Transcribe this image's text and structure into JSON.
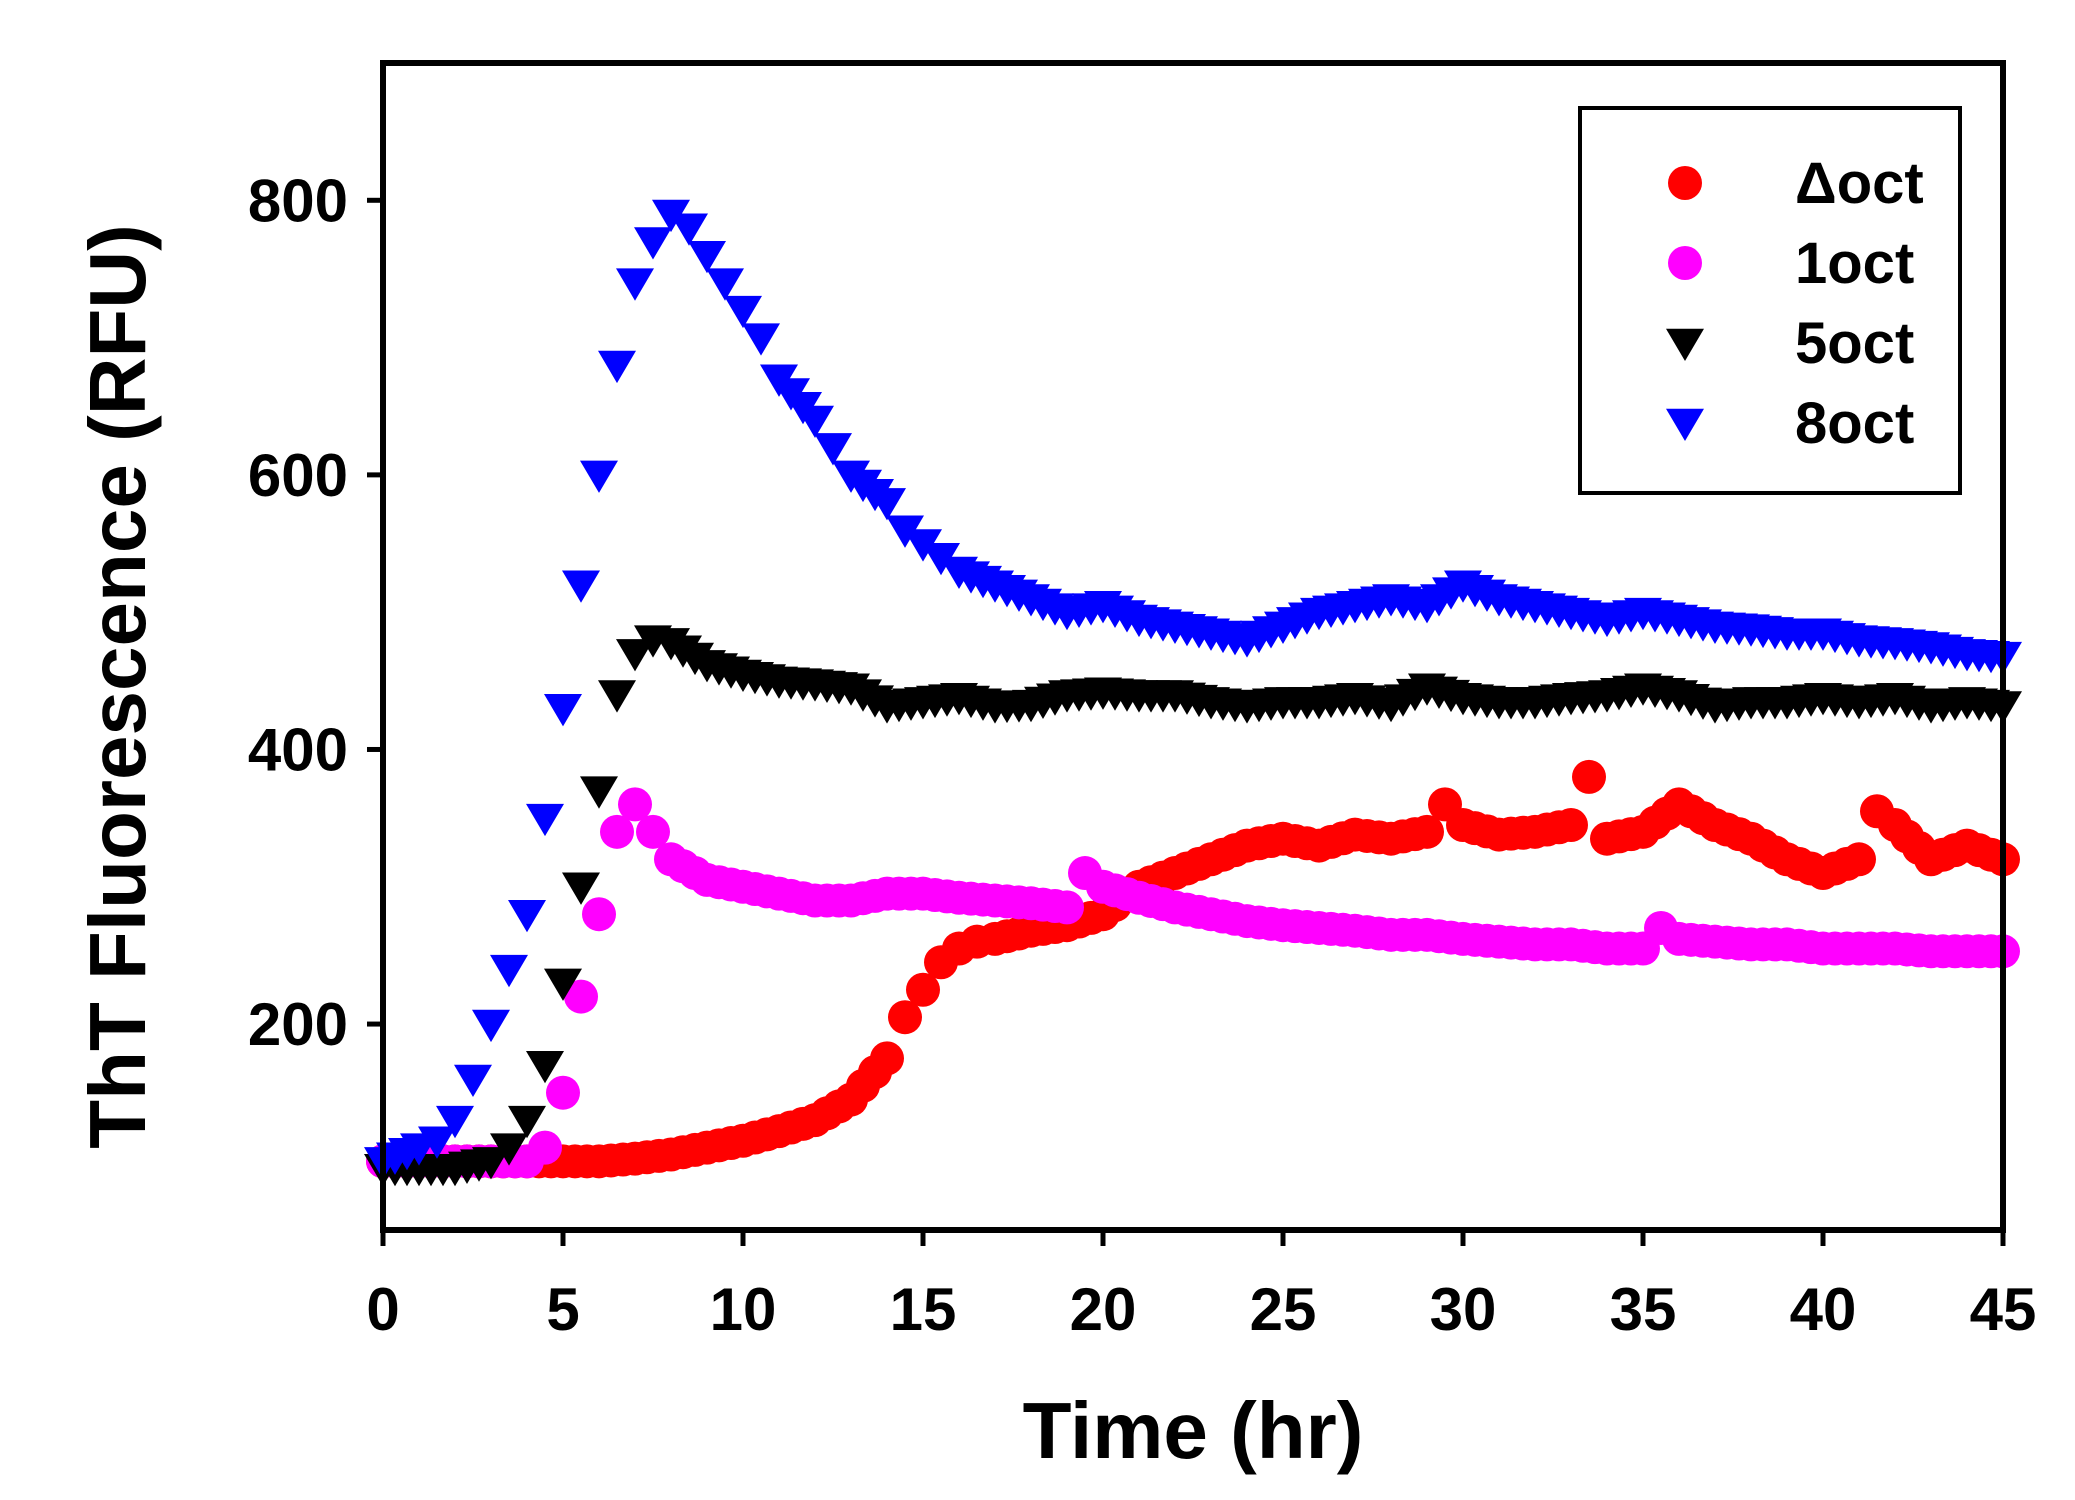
{
  "chart_data": {
    "type": "scatter",
    "title": "",
    "xlabel": "Time (hr)",
    "ylabel": "ThT Fluorescence (RFU)",
    "xlim": [
      0,
      45
    ],
    "ylim": [
      50,
      900
    ],
    "xticks": [
      0,
      5,
      10,
      15,
      20,
      25,
      30,
      35,
      40,
      45
    ],
    "yticks": [
      200,
      400,
      600,
      800
    ],
    "grid": false,
    "legend_position": "top-right",
    "series": [
      {
        "name": "Δoct",
        "color": "#ff0000",
        "marker": "circle",
        "x": [
          0,
          1,
          2,
          3,
          4,
          5,
          6,
          7,
          8,
          9,
          10,
          11,
          12,
          13,
          14,
          14.5,
          15,
          15.5,
          16,
          16.5,
          17,
          18,
          19,
          20,
          21,
          22,
          23,
          24,
          25,
          26,
          27,
          28,
          29,
          29.5,
          30,
          31,
          32,
          33,
          33.5,
          34,
          35,
          36,
          37,
          38,
          39,
          40,
          41,
          41.5,
          42,
          43,
          44,
          45
        ],
        "y": [
          100,
          100,
          100,
          100,
          100,
          100,
          100,
          102,
          105,
          110,
          115,
          122,
          130,
          145,
          175,
          205,
          225,
          245,
          255,
          260,
          262,
          268,
          272,
          280,
          300,
          310,
          320,
          330,
          335,
          330,
          338,
          335,
          340,
          360,
          345,
          338,
          340,
          345,
          380,
          335,
          340,
          360,
          345,
          335,
          320,
          310,
          320,
          355,
          345,
          320,
          330,
          320
        ]
      },
      {
        "name": "1oct",
        "color": "#ff00ff",
        "marker": "circle",
        "x": [
          0,
          1,
          2,
          3,
          4,
          4.5,
          5,
          5.5,
          6,
          6.5,
          7,
          7.5,
          8,
          9,
          10,
          11,
          12,
          13,
          14,
          15,
          16,
          17,
          18,
          19,
          19.5,
          20,
          21,
          22,
          23,
          24,
          25,
          26,
          27,
          28,
          29,
          30,
          31,
          32,
          33,
          34,
          35,
          35.5,
          36,
          37,
          38,
          39,
          40,
          41,
          42,
          43,
          44,
          45
        ],
        "y": [
          100,
          100,
          100,
          100,
          100,
          110,
          150,
          220,
          280,
          340,
          360,
          340,
          320,
          305,
          300,
          295,
          290,
          290,
          295,
          295,
          292,
          290,
          288,
          285,
          310,
          300,
          292,
          285,
          280,
          275,
          272,
          270,
          268,
          265,
          265,
          262,
          260,
          258,
          258,
          255,
          255,
          270,
          262,
          260,
          258,
          258,
          255,
          255,
          255,
          253,
          253,
          253
        ]
      },
      {
        "name": "5oct",
        "color": "#000000",
        "marker": "triangle-down",
        "x": [
          0,
          1,
          2,
          3,
          3.5,
          4,
          4.5,
          5,
          5.5,
          6,
          6.5,
          7,
          7.5,
          8,
          9,
          10,
          11,
          12,
          13,
          14,
          15,
          16,
          17,
          18,
          19,
          20,
          21,
          22,
          23,
          24,
          25,
          26,
          27,
          28,
          29,
          30,
          31,
          32,
          33,
          34,
          35,
          36,
          37,
          38,
          39,
          40,
          41,
          42,
          43,
          44,
          45
        ],
        "y": [
          95,
          95,
          95,
          100,
          110,
          130,
          170,
          230,
          300,
          370,
          440,
          470,
          480,
          478,
          462,
          455,
          450,
          448,
          445,
          432,
          435,
          438,
          432,
          433,
          440,
          442,
          440,
          440,
          435,
          432,
          435,
          435,
          438,
          433,
          445,
          438,
          435,
          435,
          438,
          440,
          445,
          440,
          432,
          435,
          435,
          438,
          435,
          438,
          432,
          435,
          432
        ]
      },
      {
        "name": "8oct",
        "color": "#0000ff",
        "marker": "triangle-down",
        "x": [
          0,
          1,
          1.5,
          2,
          2.5,
          3,
          3.5,
          4,
          4.5,
          5,
          5.5,
          6,
          6.5,
          7,
          7.5,
          8,
          8.5,
          9,
          9.5,
          10,
          10.5,
          11,
          12,
          12.5,
          13,
          14,
          14.5,
          15,
          15.5,
          16,
          17,
          18,
          19,
          20,
          21,
          22,
          23,
          24,
          25,
          26,
          27,
          28,
          29,
          30,
          31,
          32,
          33,
          34,
          35,
          36,
          37,
          38,
          39,
          40,
          41,
          42,
          43,
          44,
          45
        ],
        "y": [
          100,
          110,
          115,
          130,
          160,
          200,
          240,
          280,
          350,
          430,
          520,
          600,
          680,
          740,
          770,
          790,
          780,
          760,
          740,
          720,
          700,
          670,
          640,
          620,
          600,
          580,
          560,
          550,
          540,
          530,
          520,
          510,
          500,
          505,
          495,
          490,
          485,
          480,
          490,
          500,
          505,
          510,
          505,
          520,
          510,
          505,
          500,
          495,
          500,
          495,
          490,
          488,
          485,
          485,
          480,
          478,
          475,
          470,
          468
        ]
      }
    ]
  }
}
